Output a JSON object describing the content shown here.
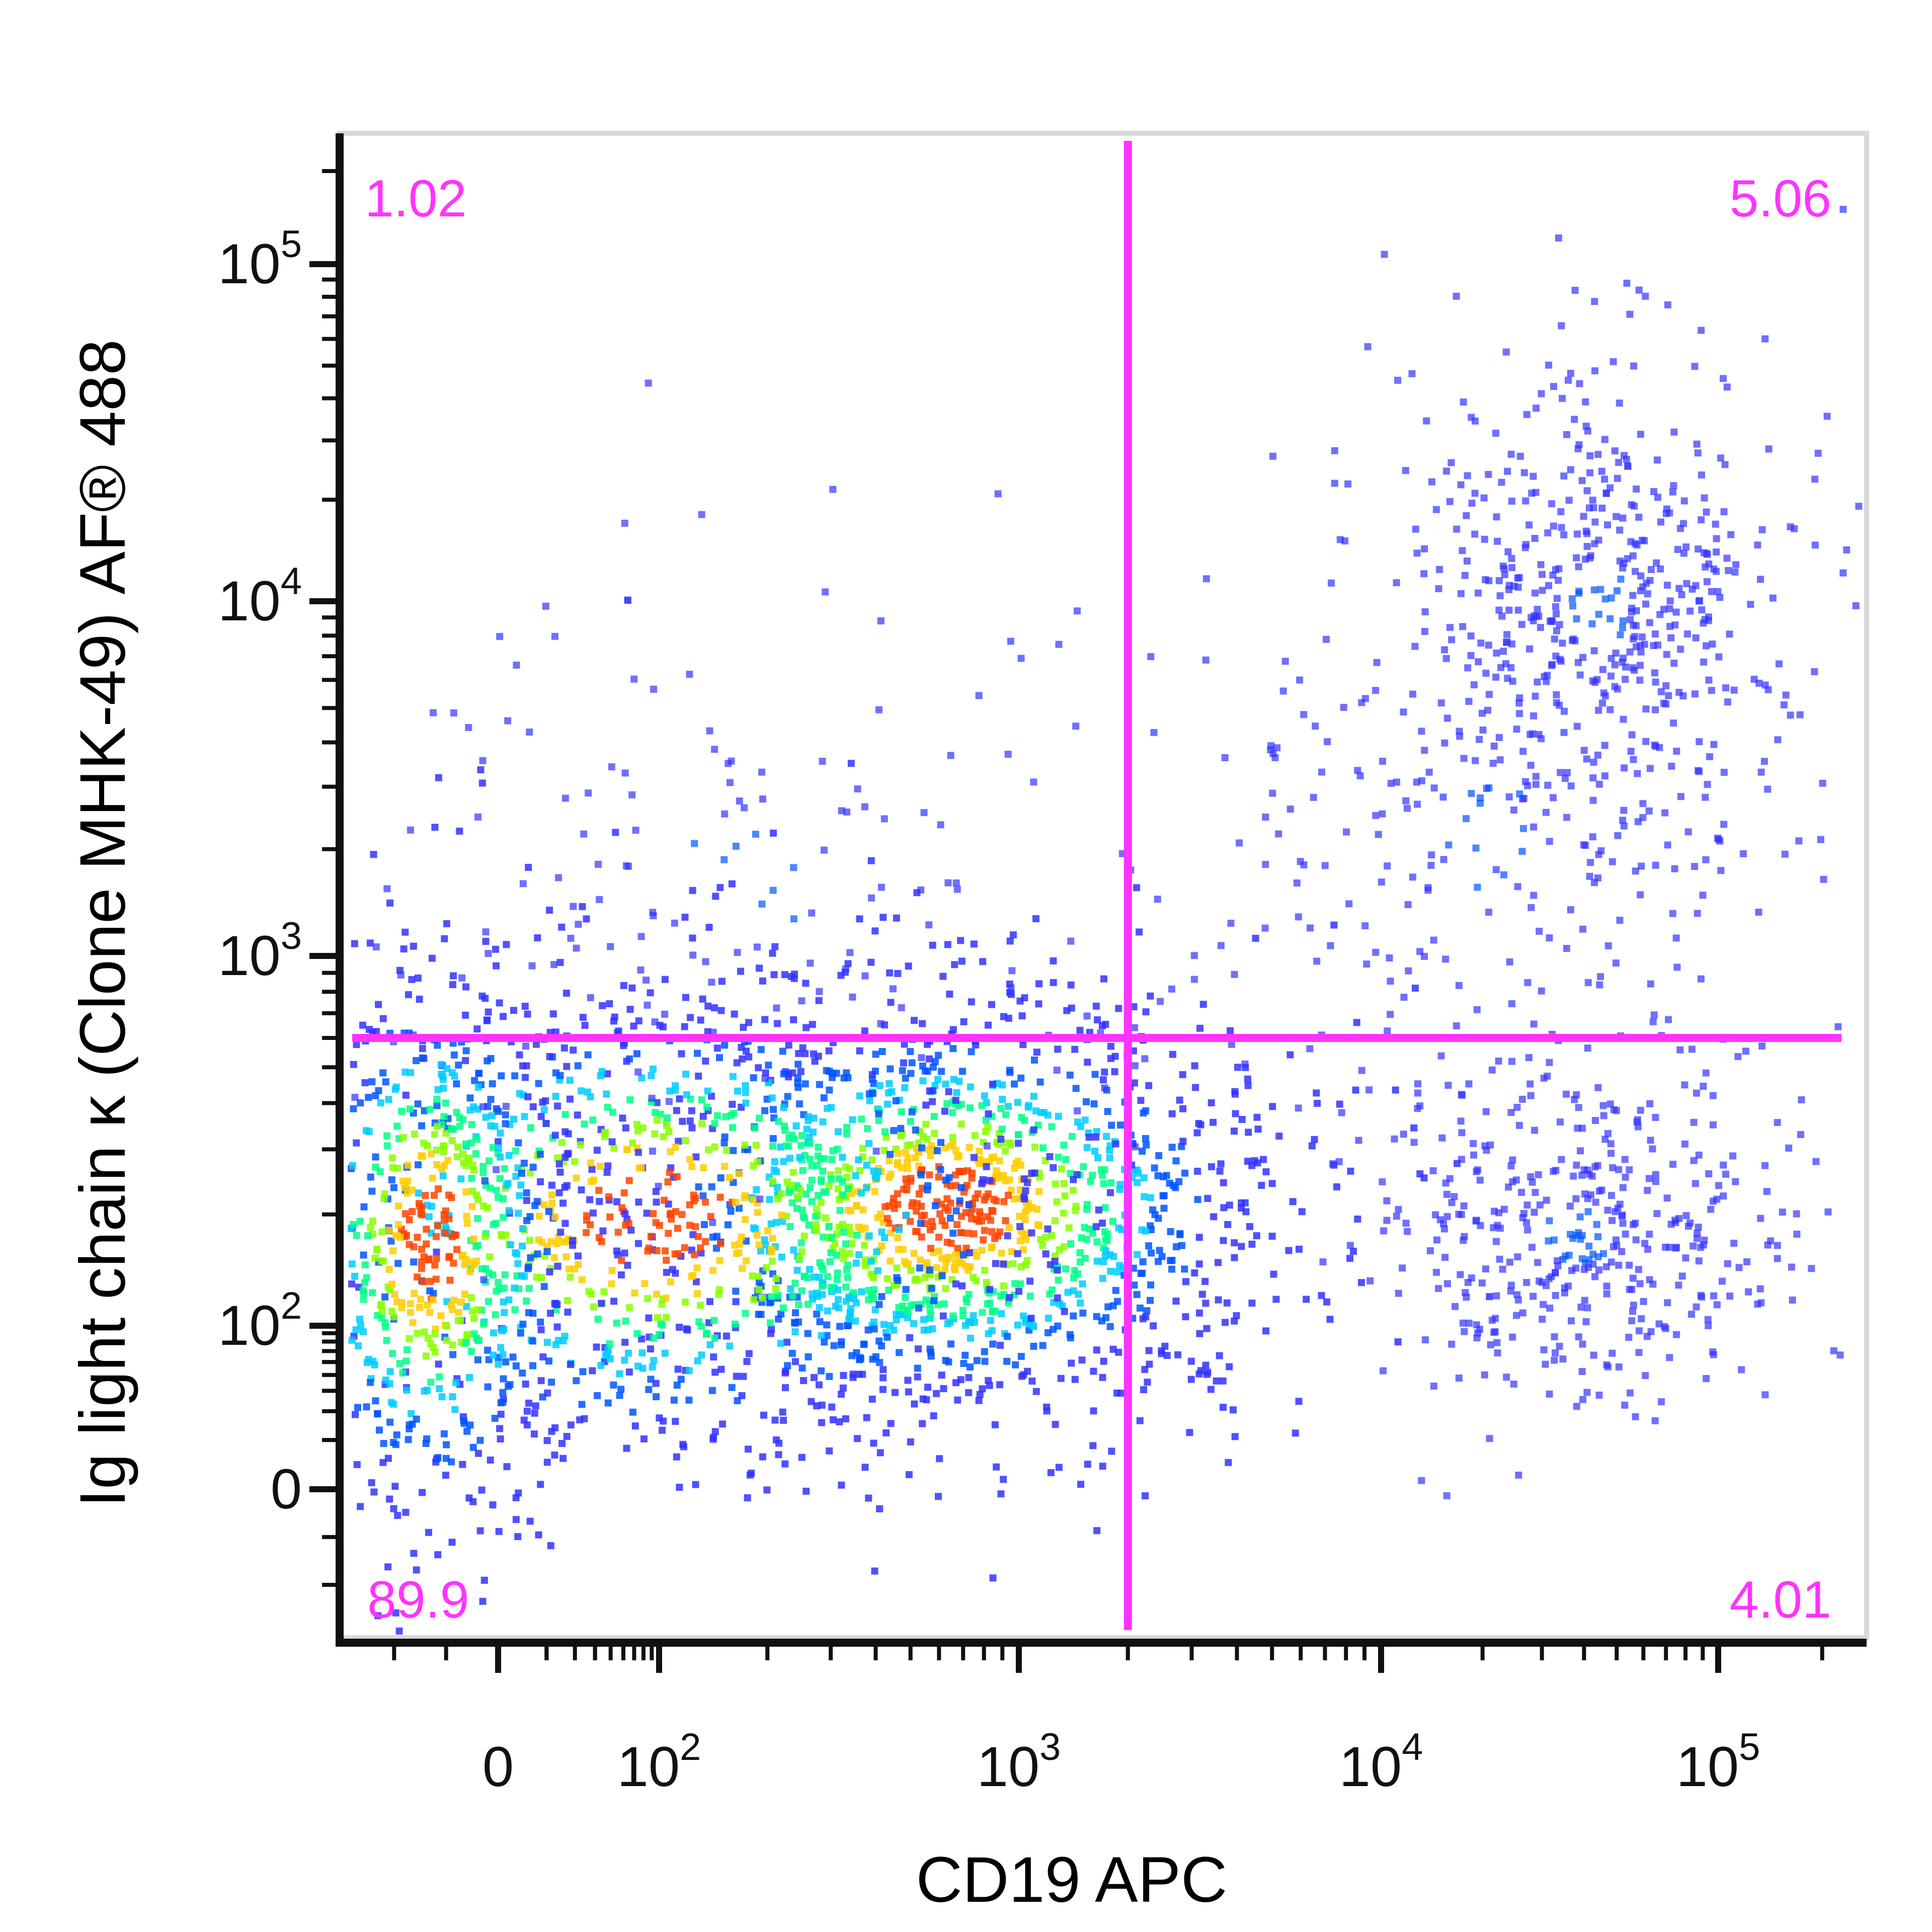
{
  "chart_data": {
    "type": "scatter",
    "subtype": "flow-cytometry-pseudocolor-density",
    "xlabel": "CD19 APC",
    "ylabel": "Ig light chain κ (Clone MHK-49) AF® 488",
    "x_scale": "biexponential",
    "y_scale": "biexponential",
    "xlim": [
      -60,
      260000
    ],
    "ylim": [
      -60,
      260000
    ],
    "x_ticks": [
      {
        "value": 0,
        "label": "0"
      },
      {
        "value": 100,
        "label": "10",
        "exp": "2"
      },
      {
        "value": 1000,
        "label": "10",
        "exp": "3"
      },
      {
        "value": 10000,
        "label": "10",
        "exp": "4"
      },
      {
        "value": 100000,
        "label": "10",
        "exp": "5"
      }
    ],
    "y_ticks": [
      {
        "value": 0,
        "label": "0"
      },
      {
        "value": 100,
        "label": "10",
        "exp": "2"
      },
      {
        "value": 1000,
        "label": "10",
        "exp": "3"
      },
      {
        "value": 10000,
        "label": "10",
        "exp": "4"
      },
      {
        "value": 100000,
        "label": "10",
        "exp": "5"
      }
    ],
    "gates": {
      "x": 2000,
      "y": 600
    },
    "gate_color": "#ff33ff",
    "quadrants": [
      {
        "name": "upper-left",
        "percent": "1.02"
      },
      {
        "name": "upper-right",
        "percent": "5.06"
      },
      {
        "name": "lower-left",
        "percent": "89.9"
      },
      {
        "name": "lower-right",
        "percent": "4.01"
      }
    ],
    "populations": [
      {
        "name": "CD19- Igκ- (dense)",
        "x_center": 80,
        "y_center": 200,
        "share": 0.899
      },
      {
        "name": "CD19+ Igκ+",
        "x_center": 40000,
        "y_center": 10000,
        "share": 0.0506
      },
      {
        "name": "CD19+ Igκ-",
        "x_center": 35000,
        "y_center": 190,
        "share": 0.0401
      },
      {
        "name": "CD19- Igκ+",
        "x_center": 200,
        "y_center": 3000,
        "share": 0.0102
      }
    ],
    "density_colors": [
      "#3333ff",
      "#0055ff",
      "#00ccff",
      "#00ff88",
      "#88ff00",
      "#ffcc00",
      "#ff4400"
    ],
    "grid": false
  }
}
